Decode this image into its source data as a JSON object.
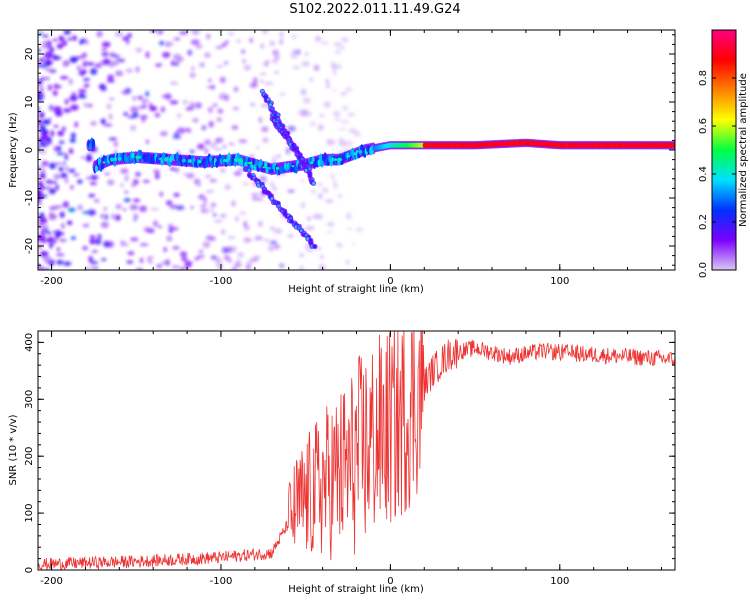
{
  "title": "S102.2022.011.11.49.G24",
  "chart_data": [
    {
      "type": "heatmap",
      "xlabel": "Height of straight line (km)",
      "ylabel": "Frequency (Hz)",
      "xlim": [
        -208,
        168
      ],
      "ylim": [
        -25,
        25
      ],
      "x_ticks": [
        -200,
        -100,
        0,
        100
      ],
      "y_ticks": [
        -20,
        -10,
        0,
        10,
        20
      ],
      "colorbar": {
        "label": "Normalized spectral amplitude",
        "range": [
          0,
          1
        ],
        "ticks": [
          0.0,
          0.2,
          0.4,
          0.6,
          0.8
        ],
        "colormap": [
          "#dcc8f5",
          "#7a00ff",
          "#0030ff",
          "#00e0ff",
          "#00ff40",
          "#ffff00",
          "#ff8000",
          "#ff0000",
          "#ff0080"
        ]
      },
      "ridge": [
        {
          "x": -175,
          "y": -3.5
        },
        {
          "x": -165,
          "y": -2.0
        },
        {
          "x": -150,
          "y": -1.5
        },
        {
          "x": -130,
          "y": -2.0
        },
        {
          "x": -110,
          "y": -2.5
        },
        {
          "x": -90,
          "y": -2.0
        },
        {
          "x": -70,
          "y": -4.0
        },
        {
          "x": -50,
          "y": -3.0
        },
        {
          "x": -40,
          "y": -2.0
        },
        {
          "x": -30,
          "y": -2.0
        },
        {
          "x": -15,
          "y": 0.0
        },
        {
          "x": 0,
          "y": 1.0
        },
        {
          "x": 20,
          "y": 1.0
        },
        {
          "x": 50,
          "y": 1.0
        },
        {
          "x": 80,
          "y": 1.5
        },
        {
          "x": 100,
          "y": 1.0
        },
        {
          "x": 168,
          "y": 1.0
        }
      ],
      "branches": [
        {
          "from": {
            "x": -75,
            "y": 12
          },
          "to": {
            "x": -45,
            "y": -7
          }
        },
        {
          "from": {
            "x": -70,
            "y": 7
          },
          "to": {
            "x": -48,
            "y": -4
          }
        },
        {
          "from": {
            "x": -85,
            "y": -4
          },
          "to": {
            "x": -45,
            "y": -20
          }
        }
      ]
    },
    {
      "type": "line",
      "xlabel": "Height of straight line (km)",
      "ylabel": "SNR (10 * v/v)",
      "xlim": [
        -208,
        168
      ],
      "ylim": [
        0,
        420
      ],
      "x_ticks": [
        -200,
        -100,
        0,
        100
      ],
      "y_ticks": [
        0,
        100,
        200,
        300,
        400
      ],
      "series": [
        {
          "color": "#ee3333",
          "envelope": [
            {
              "x": -208,
              "y": 10
            },
            {
              "x": -150,
              "y": 15
            },
            {
              "x": -100,
              "y": 22
            },
            {
              "x": -70,
              "y": 30
            },
            {
              "x": -55,
              "y": 110
            },
            {
              "x": -40,
              "y": 150
            },
            {
              "x": -25,
              "y": 180
            },
            {
              "x": -10,
              "y": 230
            },
            {
              "x": 5,
              "y": 260
            },
            {
              "x": 15,
              "y": 300
            },
            {
              "x": 25,
              "y": 350
            },
            {
              "x": 35,
              "y": 380
            },
            {
              "x": 50,
              "y": 390
            },
            {
              "x": 70,
              "y": 375
            },
            {
              "x": 90,
              "y": 385
            },
            {
              "x": 110,
              "y": 380
            },
            {
              "x": 140,
              "y": 375
            },
            {
              "x": 168,
              "y": 370
            }
          ]
        }
      ]
    }
  ]
}
